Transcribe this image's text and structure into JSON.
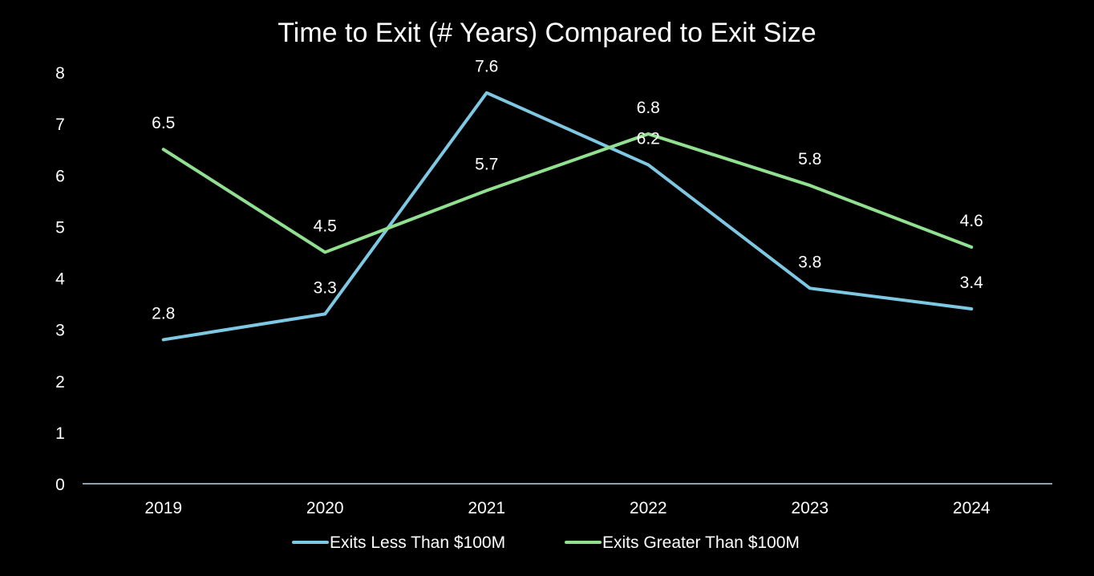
{
  "chart_data": {
    "type": "line",
    "title": "Time to Exit (# Years) Compared to Exit Size",
    "xlabel": "",
    "ylabel": "",
    "categories": [
      "2019",
      "2020",
      "2021",
      "2022",
      "2023",
      "2024"
    ],
    "y_ticks": [
      "0",
      "1",
      "2",
      "3",
      "4",
      "5",
      "6",
      "7",
      "8"
    ],
    "ylim": [
      0,
      8
    ],
    "grid": false,
    "legend_position": "bottom",
    "series": [
      {
        "name": "Exits Less Than $100M",
        "color": "#7ec8e3",
        "values": [
          2.8,
          3.3,
          7.6,
          6.2,
          3.8,
          3.4
        ],
        "labels": [
          "2.8",
          "3.3",
          "7.6",
          "6.2",
          "3.8",
          "3.4"
        ]
      },
      {
        "name": "Exits Greater Than $100M",
        "color": "#90e090",
        "values": [
          6.5,
          4.5,
          5.7,
          6.8,
          5.8,
          4.6
        ],
        "labels": [
          "6.5",
          "4.5",
          "5.7",
          "6.8",
          "5.8",
          "4.6"
        ]
      }
    ],
    "axis_color": "#bcd8ec"
  }
}
